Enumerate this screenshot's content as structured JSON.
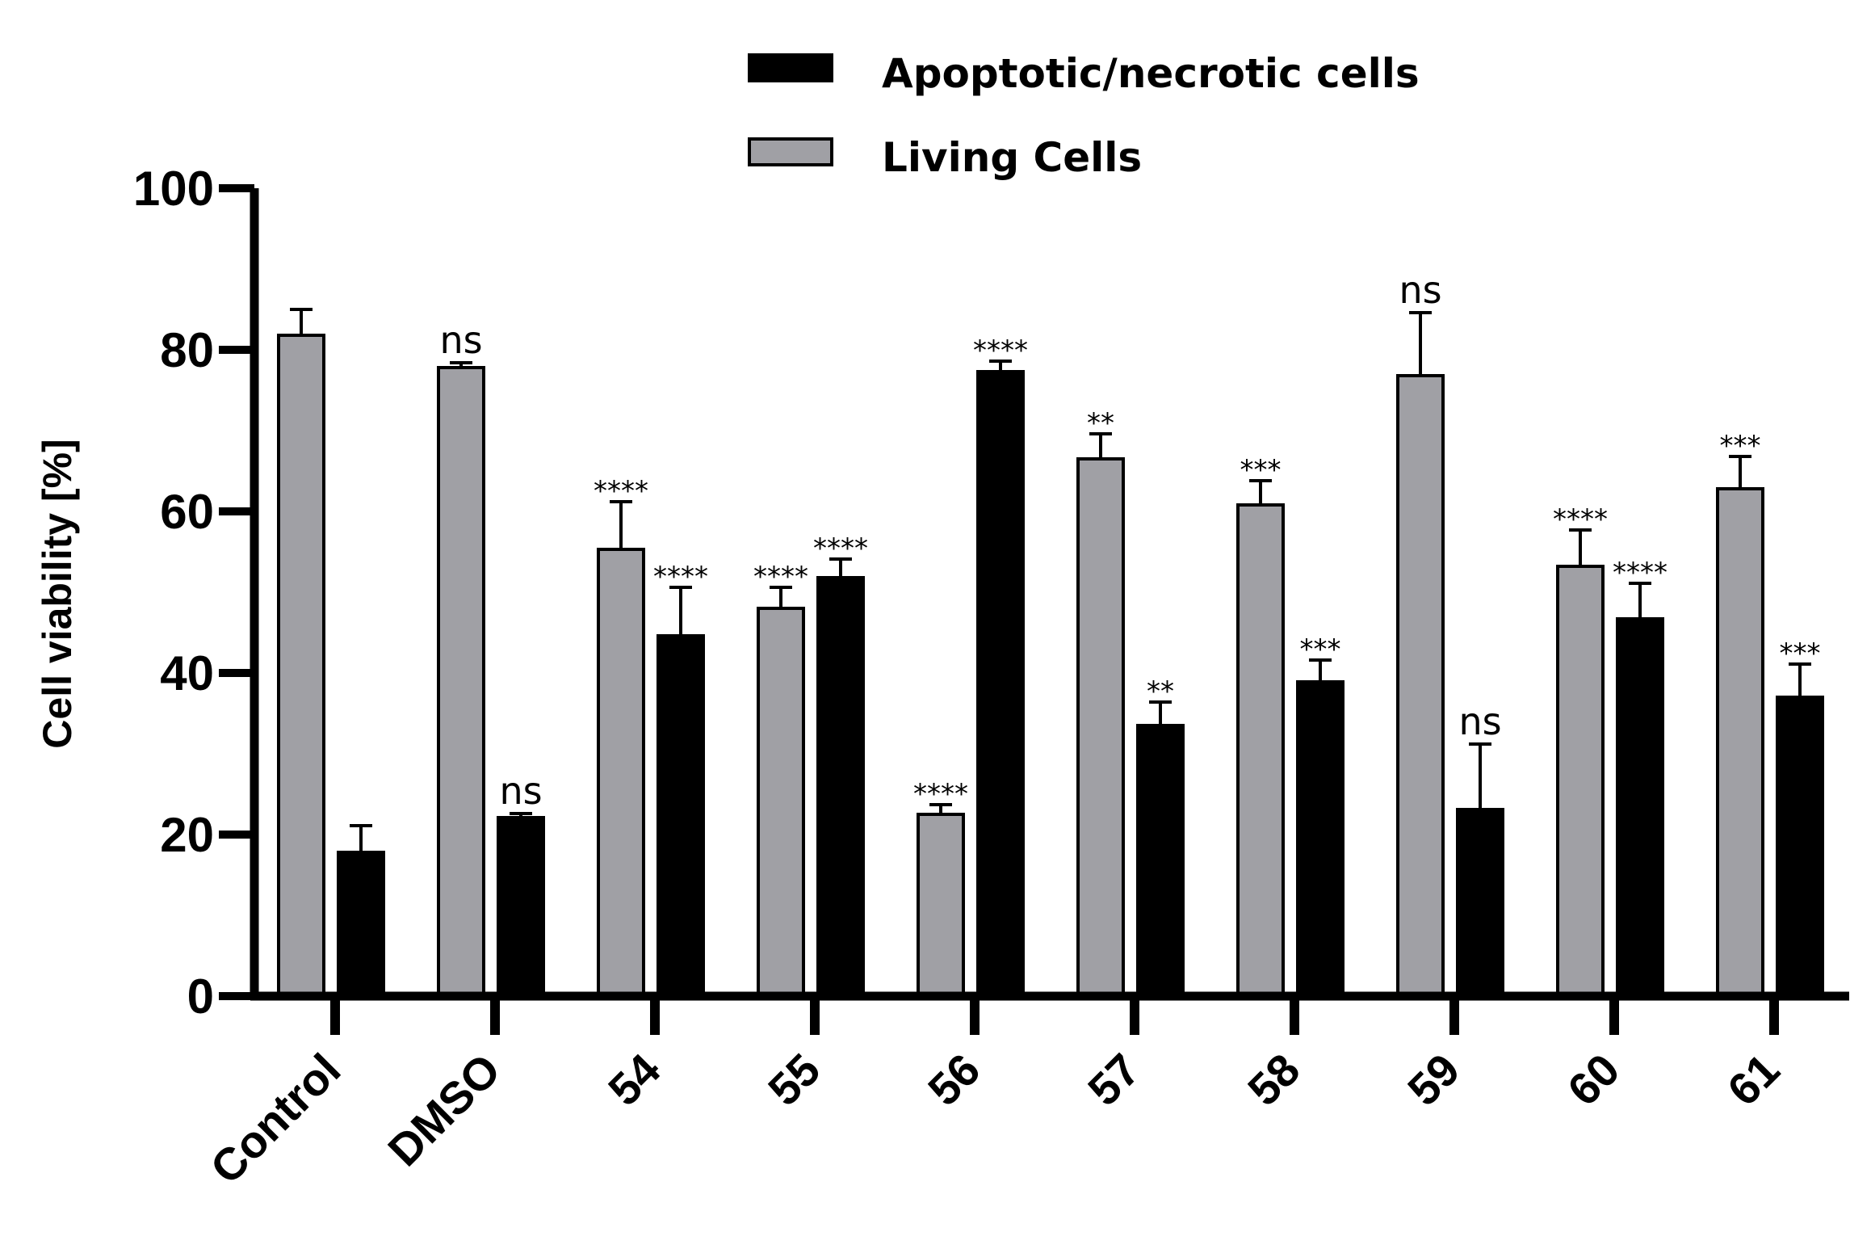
{
  "chart_data": {
    "type": "bar",
    "title": "",
    "xlabel": "",
    "ylabel": "Cell viability [%]",
    "ylim": [
      0,
      100
    ],
    "yticks": [
      0,
      20,
      40,
      60,
      80,
      100
    ],
    "grid": false,
    "legend_position": "top",
    "categories": [
      "Control",
      "DMSO",
      "54",
      "55",
      "56",
      "57",
      "58",
      "59",
      "60",
      "61"
    ],
    "series": [
      {
        "name": "Living Cells",
        "color": "#a0a0a5",
        "values": [
          81.8,
          77.8,
          55.3,
          48.0,
          22.5,
          66.5,
          60.8,
          76.8,
          53.2,
          62.8
        ],
        "errors": [
          3.2,
          0.6,
          5.9,
          2.6,
          1.2,
          3.1,
          3.0,
          7.8,
          4.5,
          4.0
        ],
        "significance": [
          "",
          "ns",
          "****",
          "****",
          "****",
          "**",
          "***",
          "ns",
          "****",
          "***"
        ]
      },
      {
        "name": "Apoptotic/necrotic cells",
        "color": "#000000",
        "values": [
          17.8,
          22.1,
          44.6,
          51.8,
          77.3,
          33.5,
          38.9,
          23.1,
          46.7,
          37.0
        ],
        "errors": [
          3.3,
          0.5,
          6.0,
          2.3,
          1.3,
          2.9,
          2.7,
          8.1,
          4.4,
          4.1
        ],
        "significance": [
          "",
          "ns",
          "****",
          "****",
          "****",
          "**",
          "***",
          "ns",
          "****",
          "***"
        ]
      }
    ],
    "legend": [
      "Apoptotic/necrotic cells",
      "Living Cells"
    ]
  }
}
